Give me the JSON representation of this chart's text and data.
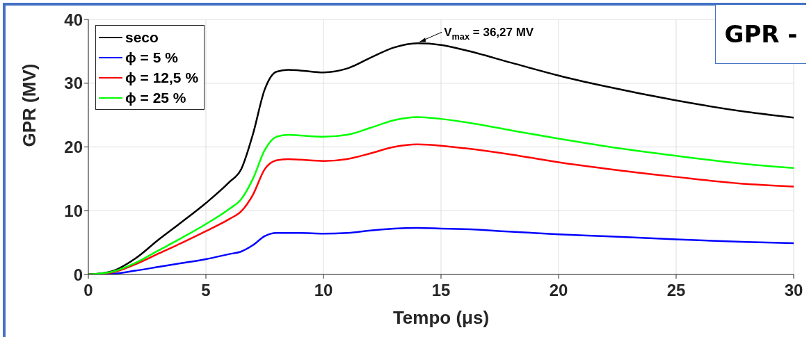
{
  "chart_data": {
    "type": "line",
    "title": "GPR -",
    "xlabel": "Tempo (μs)",
    "ylabel": "GPR (MV)",
    "x": [
      0,
      1,
      2,
      3,
      4,
      5,
      6,
      6.5,
      7,
      7.5,
      8,
      8.5,
      9,
      10,
      11,
      12,
      13,
      14,
      15,
      16,
      18,
      20,
      22,
      25,
      28,
      30
    ],
    "series": [
      {
        "name": "seco",
        "color": "#000000",
        "values": [
          0,
          0.5,
          2.5,
          5.5,
          8.3,
          11.2,
          14.5,
          16.5,
          22,
          29,
          31.8,
          32.1,
          32,
          31.7,
          32.3,
          34,
          35.6,
          36.27,
          36,
          35.2,
          33.2,
          31.2,
          29.5,
          27.3,
          25.5,
          24.6
        ]
      },
      {
        "name": "ϕ = 5 %",
        "color": "#0000ff",
        "values": [
          0,
          0.1,
          0.6,
          1.2,
          1.8,
          2.4,
          3.2,
          3.6,
          4.6,
          6,
          6.5,
          6.5,
          6.5,
          6.4,
          6.5,
          6.9,
          7.2,
          7.3,
          7.2,
          7.1,
          6.7,
          6.3,
          6,
          5.5,
          5.1,
          4.9
        ]
      },
      {
        "name": "ϕ = 12,5 %",
        "color": "#ff0000",
        "values": [
          0,
          0.3,
          1.6,
          3.3,
          5,
          6.8,
          8.7,
          9.9,
          12.5,
          16.5,
          17.9,
          18.1,
          18,
          17.8,
          18.1,
          19,
          20,
          20.4,
          20.2,
          19.8,
          18.8,
          17.6,
          16.6,
          15.3,
          14.2,
          13.8
        ]
      },
      {
        "name": "ϕ = 25 %",
        "color": "#00ff00",
        "values": [
          0,
          0.4,
          1.8,
          3.8,
          5.8,
          7.9,
          10.3,
          11.8,
          15,
          19.5,
          21.6,
          21.9,
          21.8,
          21.6,
          21.9,
          23,
          24.2,
          24.7,
          24.4,
          23.9,
          22.6,
          21.3,
          20.1,
          18.6,
          17.3,
          16.7
        ]
      }
    ],
    "annotations": [
      {
        "text": "V$_{max}$ = 36,27 MV",
        "x": 14,
        "y": 36.27
      }
    ],
    "xlim": [
      0,
      30
    ],
    "xticks": [
      0,
      5,
      10,
      15,
      20,
      25,
      30
    ],
    "ylim": [
      0,
      40
    ],
    "yticks": [
      0,
      10,
      20,
      30,
      40
    ],
    "grid": true,
    "legend": "top left",
    "marker": "none",
    "line_style": "solid"
  }
}
